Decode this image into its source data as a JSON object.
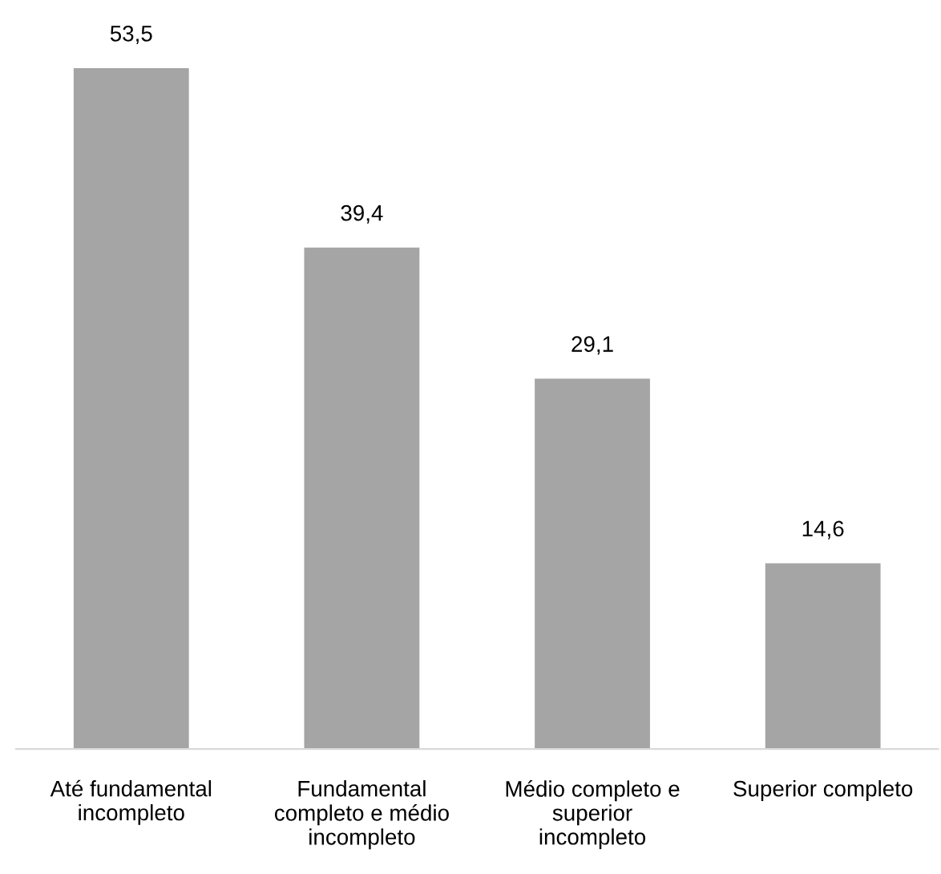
{
  "chart_data": {
    "type": "bar",
    "categories": [
      "Até fundamental\nincompleto",
      "Fundamental\ncompleto e médio\nincompleto",
      "Médio completo e\nsuperior\nincompleto",
      "Superior completo"
    ],
    "values": [
      53.5,
      39.4,
      29.1,
      14.6
    ],
    "color": "#a5a5a5",
    "value_labels": [
      "53,5",
      "39,4",
      "29,1",
      "14,6"
    ]
  }
}
